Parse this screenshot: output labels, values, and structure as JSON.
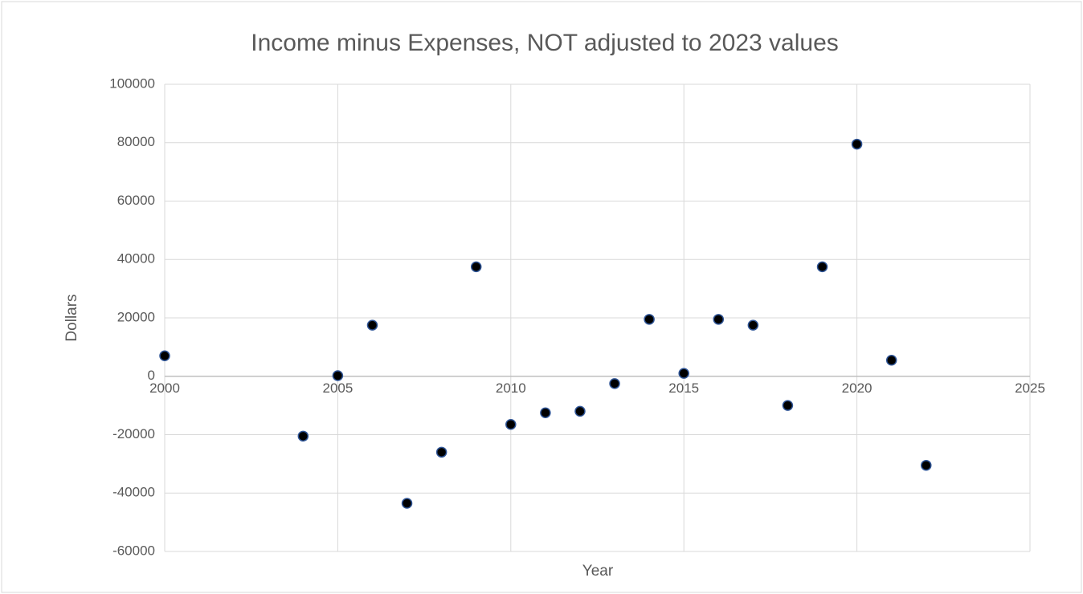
{
  "chart_data": {
    "type": "scatter",
    "title": "Income minus Expenses, NOT adjusted to 2023 values",
    "xlabel": "Year",
    "ylabel": "Dollars",
    "x": [
      2000,
      2004,
      2005,
      2006,
      2007,
      2008,
      2009,
      2010,
      2011,
      2012,
      2013,
      2014,
      2015,
      2016,
      2017,
      2018,
      2019,
      2020,
      2021,
      2022
    ],
    "values": [
      7000,
      -20500,
      200,
      17500,
      -43500,
      -26000,
      37500,
      -16500,
      -12500,
      -12000,
      -2500,
      19500,
      1000,
      19500,
      17500,
      -10000,
      37500,
      79500,
      5500,
      -30500
    ],
    "color": "#000000",
    "edge_color": "#2f5597",
    "xlim": [
      2000,
      2025
    ],
    "xticks": [
      2000,
      2005,
      2010,
      2015,
      2020,
      2025
    ],
    "ylim": [
      -60000,
      100000
    ],
    "yticks": [
      -60000,
      -40000,
      -20000,
      0,
      20000,
      40000,
      60000,
      80000,
      100000
    ],
    "grid": true
  }
}
